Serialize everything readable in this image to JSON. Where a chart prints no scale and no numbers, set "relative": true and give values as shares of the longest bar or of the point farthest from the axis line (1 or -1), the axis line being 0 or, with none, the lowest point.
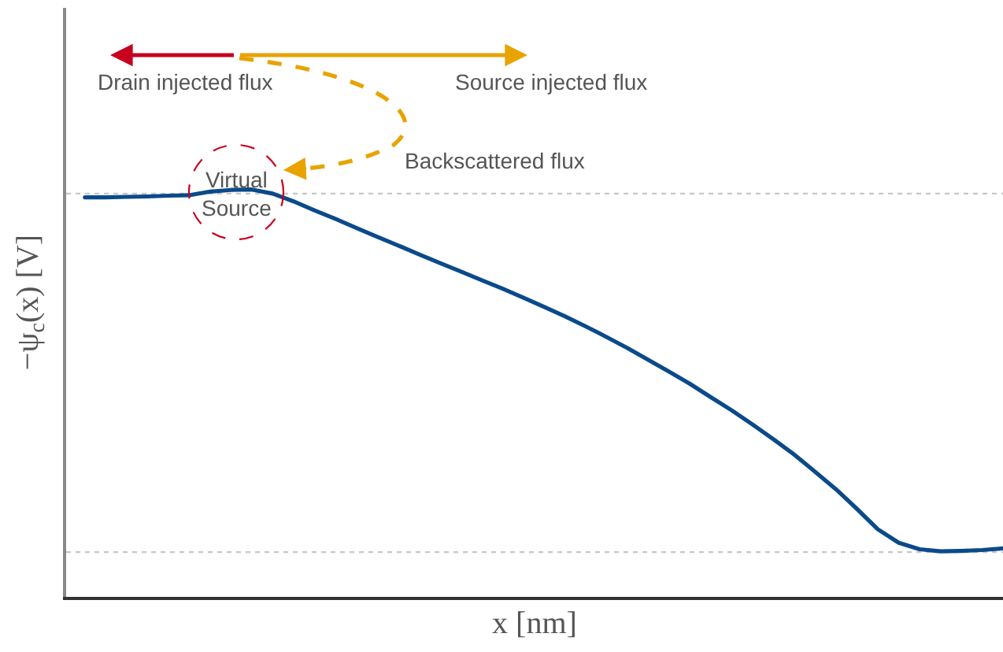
{
  "chart_data": {
    "type": "line",
    "relative": true,
    "xlabel": "x [nm]",
    "ylabel": "−ψ$_{c}$(x) [V]",
    "categories": [
      null,
      null,
      null,
      null,
      null,
      null,
      null,
      null,
      null,
      null,
      null,
      null,
      null,
      null,
      null,
      null,
      null,
      null,
      null,
      null,
      null,
      null,
      null,
      null,
      null,
      null,
      null,
      null,
      null,
      null,
      null,
      null,
      null,
      null,
      null,
      null,
      null,
      null,
      null,
      null,
      null,
      null,
      null,
      null,
      null
    ],
    "series": [
      {
        "color": "#0b4a8a",
        "values": [
          0.981,
          0.981,
          0.982,
          0.983,
          0.985,
          0.986,
          0.995,
          0.999,
          1.0,
          0.99,
          0.971,
          0.949,
          0.928,
          0.906,
          0.884,
          0.863,
          0.841,
          0.82,
          0.799,
          0.778,
          0.757,
          0.735,
          0.712,
          0.689,
          0.664,
          0.638,
          0.611,
          0.582,
          0.553,
          0.523,
          0.49,
          0.458,
          0.423,
          0.387,
          0.349,
          0.307,
          0.264,
          0.216,
          0.166,
          0.133,
          0.117,
          0.112,
          0.113,
          0.115,
          0.119
        ]
      }
    ],
    "ref_lines": [
      {
        "axis": "y",
        "value": 0.99,
        "color": "#c8c8c8",
        "line_style": "dotted"
      },
      {
        "axis": "y",
        "value": 0.11,
        "color": "#c8c8c8",
        "line_style": "dotted"
      }
    ],
    "annotations": [
      "Drain injected flux",
      "Source injected flux",
      "Backscattered flux",
      "Virtual Source"
    ],
    "tick_labels": false,
    "marker": "none",
    "line_style": "solid"
  }
}
